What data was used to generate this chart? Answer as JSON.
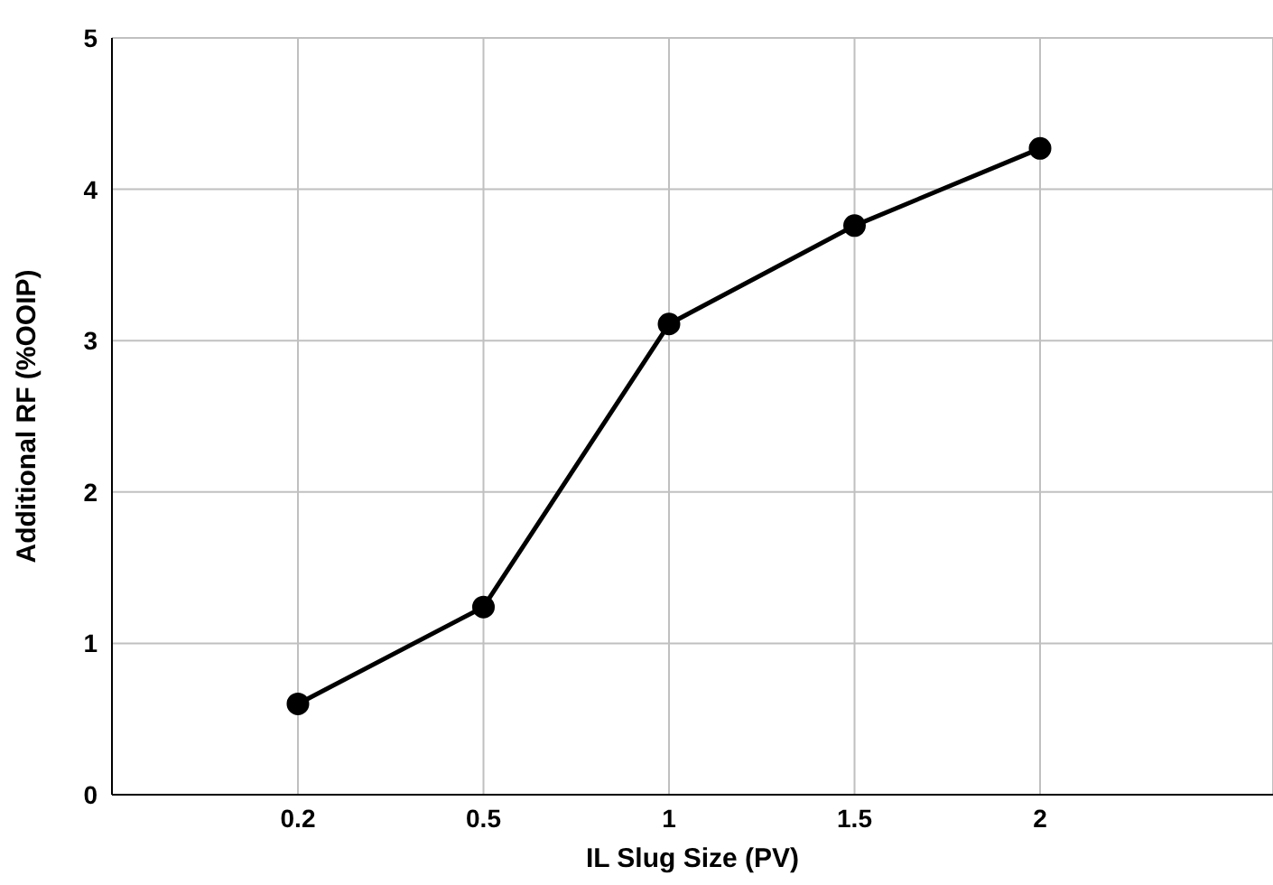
{
  "chart_data": {
    "type": "line",
    "xlabel": "IL Slug Size (PV)",
    "ylabel": "Additional RF (%OOIP)",
    "categories": [
      "0.2",
      "0.5",
      "1",
      "1.5",
      "2"
    ],
    "series": [
      {
        "color": "#000000",
        "values": [
          0.6,
          1.24,
          3.11,
          3.76,
          4.27
        ]
      }
    ],
    "ylim": [
      0,
      5
    ],
    "yticks": [
      0,
      1,
      2,
      3,
      4,
      5
    ],
    "grid": true,
    "marker": "circle",
    "line_style": "solid"
  }
}
